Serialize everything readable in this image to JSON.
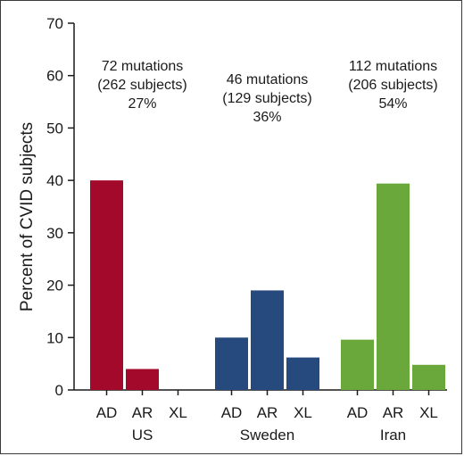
{
  "chart_data": {
    "type": "bar",
    "title": "",
    "xlabel": "",
    "ylabel": "Percent of CVID subjects",
    "ylim": [
      0,
      70
    ],
    "yticks": [
      0,
      10,
      20,
      30,
      40,
      50,
      60,
      70
    ],
    "grid": false,
    "legend": "none",
    "groups": [
      {
        "name": "US",
        "color": "#a3092a",
        "categories": [
          "AD",
          "AR",
          "XL"
        ],
        "values": [
          40,
          4,
          0
        ],
        "annotation": [
          "72 mutations",
          "(262 subjects)",
          "27%"
        ]
      },
      {
        "name": "Sweden",
        "color": "#264a7e",
        "categories": [
          "AD",
          "AR",
          "XL"
        ],
        "values": [
          10,
          19,
          6.2
        ],
        "annotation": [
          "46 mutations",
          "(129 subjects)",
          "36%"
        ]
      },
      {
        "name": "Iran",
        "color": "#6aa83c",
        "categories": [
          "AD",
          "AR",
          "XL"
        ],
        "values": [
          9.6,
          39.4,
          4.8
        ],
        "annotation": [
          "112 mutations",
          "(206 subjects)",
          "54%"
        ]
      }
    ]
  }
}
